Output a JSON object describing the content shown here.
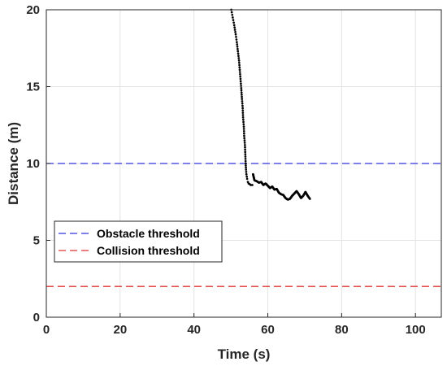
{
  "chart_data": {
    "type": "line",
    "xlabel": "Time (s)",
    "ylabel": "Distance (m)",
    "xlim": [
      0,
      107
    ],
    "ylim": [
      0,
      20
    ],
    "xticks": [
      0,
      20,
      40,
      60,
      80,
      100
    ],
    "yticks": [
      0,
      5,
      10,
      15,
      20
    ],
    "grid": true,
    "legend_position": "middle-left",
    "reference_lines": [
      {
        "name": "Obstacle threshold",
        "y": 10,
        "color": "#3333dd",
        "style": "dashed"
      },
      {
        "name": "Collision threshold",
        "y": 2,
        "color": "#e03333",
        "style": "dashed"
      }
    ],
    "series": [
      {
        "color": "#000000",
        "style": "dotted-points",
        "points": [
          [
            50.1,
            20.0
          ],
          [
            50.5,
            19.5
          ],
          [
            50.9,
            19.0
          ],
          [
            51.3,
            18.4
          ],
          [
            51.6,
            17.9
          ],
          [
            51.9,
            17.3
          ],
          [
            52.2,
            16.7
          ],
          [
            52.4,
            16.1
          ],
          [
            52.6,
            15.5
          ],
          [
            52.8,
            14.9
          ],
          [
            53.0,
            14.2
          ],
          [
            53.2,
            13.6
          ],
          [
            53.3,
            13.0
          ],
          [
            53.5,
            12.4
          ],
          [
            53.6,
            11.8
          ],
          [
            53.8,
            11.2
          ],
          [
            53.9,
            10.6
          ],
          [
            54.0,
            10.0
          ],
          [
            54.1,
            9.6
          ],
          [
            54.2,
            9.3
          ],
          [
            54.4,
            9.0
          ],
          [
            54.6,
            8.8
          ],
          [
            54.8,
            8.7
          ],
          [
            55.1,
            8.65
          ],
          [
            55.4,
            8.6
          ],
          [
            55.8,
            8.6
          ]
        ]
      },
      {
        "color": "#000000",
        "style": "dotted-dense",
        "points": [
          [
            56.0,
            9.3
          ],
          [
            56.4,
            8.9
          ],
          [
            57.0,
            8.85
          ],
          [
            57.6,
            8.75
          ],
          [
            58.2,
            8.8
          ],
          [
            58.8,
            8.6
          ],
          [
            59.4,
            8.7
          ],
          [
            60.0,
            8.55
          ],
          [
            60.6,
            8.4
          ],
          [
            61.2,
            8.5
          ],
          [
            61.8,
            8.3
          ],
          [
            62.4,
            8.35
          ],
          [
            63.0,
            8.1
          ],
          [
            63.6,
            8.0
          ],
          [
            64.2,
            7.95
          ],
          [
            64.8,
            7.75
          ],
          [
            65.4,
            7.65
          ],
          [
            66.0,
            7.7
          ],
          [
            66.6,
            7.9
          ],
          [
            67.2,
            8.05
          ],
          [
            67.8,
            8.2
          ],
          [
            68.4,
            8.0
          ],
          [
            69.0,
            7.75
          ],
          [
            69.6,
            7.9
          ],
          [
            70.2,
            8.15
          ],
          [
            70.8,
            7.9
          ],
          [
            71.4,
            7.7
          ]
        ]
      }
    ]
  }
}
